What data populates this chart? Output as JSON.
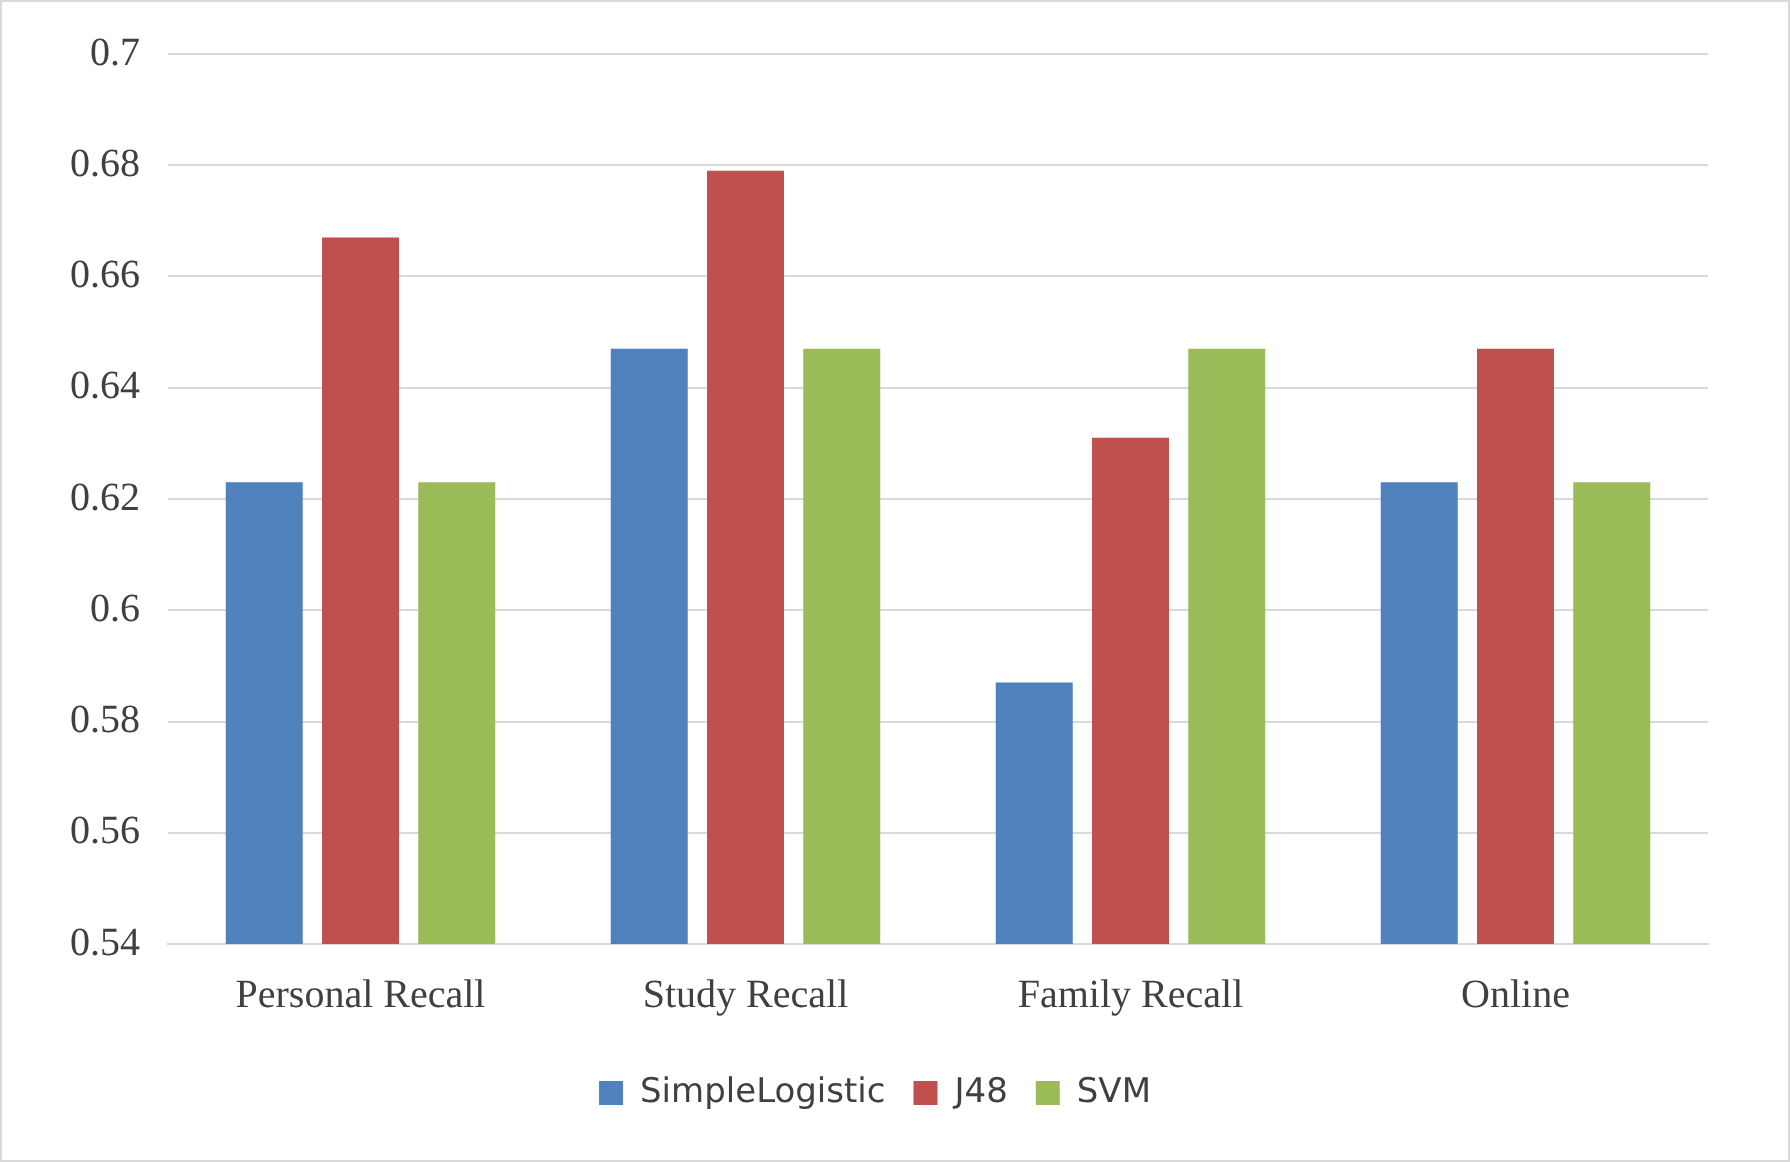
{
  "chart_data": {
    "type": "bar",
    "categories": [
      "Personal Recall",
      "Study Recall",
      "Family Recall",
      "Online"
    ],
    "series": [
      {
        "name": "SimpleLogistic",
        "color": "#4f81bd",
        "values": [
          0.623,
          0.647,
          0.587,
          0.623
        ]
      },
      {
        "name": "J48",
        "color": "#c0504d",
        "values": [
          0.667,
          0.679,
          0.631,
          0.647
        ]
      },
      {
        "name": "SVM",
        "color": "#9bbb59",
        "values": [
          0.623,
          0.647,
          0.647,
          0.623
        ]
      }
    ],
    "ylim": [
      0.54,
      0.7
    ],
    "yticks": [
      0.54,
      0.56,
      0.58,
      0.6,
      0.62,
      0.64,
      0.66,
      0.68,
      0.7
    ],
    "grid": "y",
    "legend": "bottom"
  }
}
